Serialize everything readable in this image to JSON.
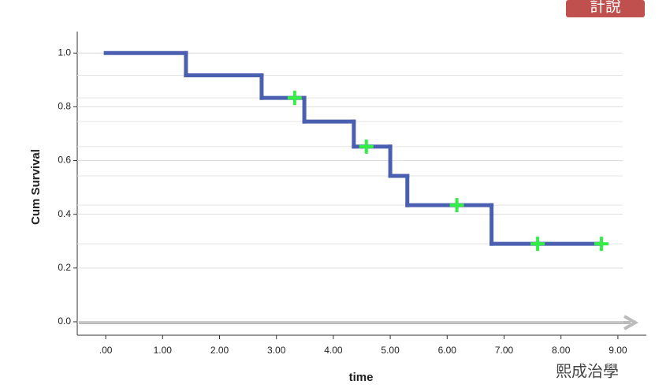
{
  "chart_data": {
    "type": "line",
    "step": true,
    "x_label": "time",
    "y_label": "Cum Survival",
    "x": [
      0,
      1.41,
      2.74,
      3.49,
      4.36,
      5.0,
      5.3,
      6.78
    ],
    "values": [
      1.0,
      0.917,
      0.833,
      0.745,
      0.652,
      0.543,
      0.434,
      0.29
    ],
    "color": "#4a5fb0",
    "censored": {
      "x": [
        3.32,
        4.58,
        6.17,
        7.59,
        8.71
      ],
      "values": [
        0.833,
        0.652,
        0.434,
        0.29,
        0.29
      ],
      "color": "#33ee44"
    },
    "xlim": [
      -0.5,
      9.5
    ],
    "ylim": [
      -0.05,
      1.08
    ],
    "xticks": [
      {
        "value": 0,
        "label": ".00"
      },
      {
        "value": 1,
        "label": "1.00"
      },
      {
        "value": 2,
        "label": "2.00"
      },
      {
        "value": 3,
        "label": "3.00"
      },
      {
        "value": 4,
        "label": "4.00"
      },
      {
        "value": 5,
        "label": "5.00"
      },
      {
        "value": 6,
        "label": "6.00"
      },
      {
        "value": 7,
        "label": "7.00"
      },
      {
        "value": 8,
        "label": "8.00"
      },
      {
        "value": 9,
        "label": "9.00"
      }
    ],
    "yticks": [
      {
        "value": 0,
        "label": "0.0"
      },
      {
        "value": 0.2,
        "label": "0.2"
      },
      {
        "value": 0.4,
        "label": "0.4"
      },
      {
        "value": 0.6,
        "label": "0.6"
      },
      {
        "value": 0.8,
        "label": "0.8"
      },
      {
        "value": 1.0,
        "label": "1.0"
      }
    ],
    "grid": true
  },
  "watermarks": {
    "top": "計說",
    "bottom": "熙成治學"
  }
}
